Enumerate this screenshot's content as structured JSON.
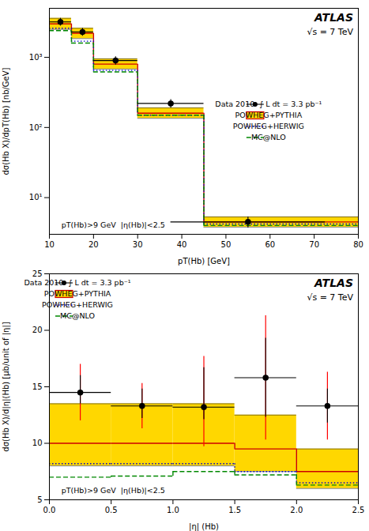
{
  "chart_data": [
    {
      "type": "step",
      "title": "ATLAS",
      "subtitle": "√s = 7 TeV",
      "xlabel": "pT(Hb) [GeV]",
      "ylabel": "dσ(Hb X)/dpT(Hb) [nb/GeV]",
      "annotation": "pT(Hb)>9 GeV  |η(Hb)|<2.5",
      "log": "y",
      "grid": false,
      "legend": "right",
      "xlim": [
        10,
        80
      ],
      "xticks": [
        10,
        20,
        30,
        40,
        50,
        60,
        70,
        80
      ],
      "ylim": [
        3,
        5000
      ],
      "yticks": [
        {
          "value": 10,
          "label": "10¹"
        },
        {
          "value": 100,
          "label": "10²"
        },
        {
          "value": 1000,
          "label": "10³"
        }
      ],
      "bins": [
        10,
        15,
        20,
        30,
        45,
        80
      ],
      "series": [
        {
          "name": "Data 2010  ∫ L dt = 3.3 pb⁻¹",
          "type": "scatter",
          "color": "#000000",
          "marker": "o",
          "x": [
            12.5,
            17.5,
            25,
            37.5,
            55
          ],
          "values": [
            3200,
            2300,
            900,
            220,
            4.5
          ],
          "xerr": [
            2.5,
            2.5,
            5,
            7.5,
            17.5
          ],
          "yerr_low": [
            400,
            300,
            120,
            30,
            0.8
          ],
          "yerr_high": [
            400,
            300,
            120,
            30,
            0.8
          ]
        },
        {
          "name": "POWHEG+PYTHIA",
          "type": "step",
          "color": "#CC0000",
          "line_style": "solid",
          "values": [
            3000,
            2200,
            800,
            160,
            4.5
          ],
          "band": {
            "low": [
              500,
              350,
              120,
              25,
              0.7
            ],
            "high": [
              600,
              400,
              150,
              30,
              0.8
            ],
            "color": "#FFD700"
          }
        },
        {
          "name": "POWHEG+HERWIG",
          "type": "step",
          "color": "#0000CC",
          "line_style": "dotted",
          "values": [
            2600,
            1700,
            650,
            150,
            4.2
          ]
        },
        {
          "name": "MC@NLO",
          "type": "step",
          "color": "#008800",
          "line_style": "dashed",
          "values": [
            2400,
            1600,
            620,
            150,
            4.0
          ]
        }
      ]
    },
    {
      "type": "step",
      "title": "ATLAS",
      "subtitle": "√s = 7 TeV",
      "xlabel": "|η| (Hb)",
      "ylabel": "dσ(Hb X)/d|η|(Hb) [μb/unit of |η|]",
      "annotation": "pT(Hb)>9 GeV  |η(Hb)|<2.5",
      "grid": false,
      "legend": "upper left",
      "xlim": [
        0,
        2.5
      ],
      "xticks": [
        {
          "value": 0,
          "label": "0.0"
        },
        0.5,
        {
          "value": 1,
          "label": "1.0"
        },
        1.5,
        {
          "value": 2,
          "label": "2.0"
        },
        2.5
      ],
      "ylim": [
        5,
        25
      ],
      "yticks": [
        5,
        10,
        15,
        20,
        25
      ],
      "bins": [
        0,
        0.5,
        1.0,
        1.5,
        2.0,
        2.5
      ],
      "series": [
        {
          "name": "Data 2010  ∫ L dt = 3.3 pb⁻¹",
          "type": "scatter",
          "color": "#000000",
          "marker": "o",
          "x": [
            0.25,
            0.75,
            1.25,
            1.75,
            2.25
          ],
          "values": [
            14.5,
            13.3,
            13.2,
            15.8,
            13.3
          ],
          "xerr": [
            0.25,
            0.25,
            0.25,
            0.25,
            0.25
          ],
          "yerr_low": [
            1.0,
            1.1,
            1.1,
            3.5,
            1.5
          ],
          "yerr_high": [
            1.5,
            1.5,
            3.5,
            3.5,
            1.5
          ],
          "syst": {
            "low": [
              2.5,
              2.0,
              3.5,
              5.5,
              3.0
            ],
            "high": [
              2.5,
              2.0,
              4.5,
              5.5,
              3.0
            ],
            "color": "red"
          }
        },
        {
          "name": "POWHEG+PYTHIA",
          "type": "step",
          "color": "#CC0000",
          "line_style": "solid",
          "values": [
            10.0,
            10.0,
            10.0,
            9.5,
            7.5
          ],
          "band": {
            "low": [
              2.0,
              2.0,
              2.0,
              2.0,
              1.5
            ],
            "high": [
              3.5,
              3.5,
              3.5,
              3.0,
              2.0
            ],
            "color": "#FFD700"
          }
        },
        {
          "name": "POWHEG+HERWIG",
          "type": "step",
          "color": "#0000CC",
          "line_style": "dotted",
          "values": [
            8.2,
            8.2,
            8.2,
            7.5,
            6.5
          ]
        },
        {
          "name": "MC@NLO",
          "type": "step",
          "color": "#008800",
          "line_style": "dashed",
          "values": [
            7.0,
            7.1,
            7.5,
            7.2,
            6.3
          ]
        }
      ]
    }
  ]
}
